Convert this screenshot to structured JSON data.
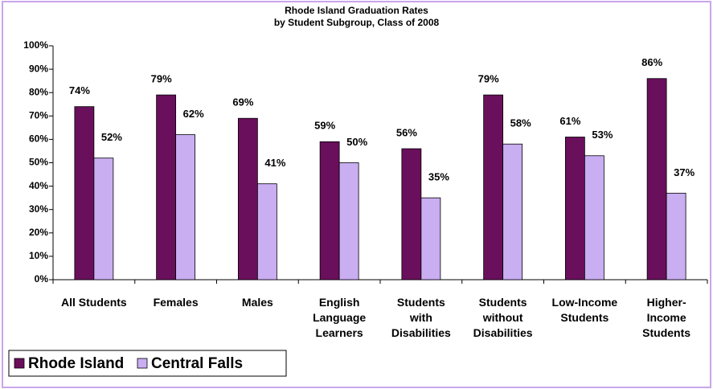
{
  "chart_data": {
    "type": "bar",
    "title": "Rhode Island Graduation Rates\nby Student Subgroup, Class of 2008",
    "categories": [
      "All Students",
      "Females",
      "Males",
      "English\nLanguage\nLearners",
      "Students\nwith\nDisabilities",
      "Students\nwithout\nDisabilities",
      "Low-Income\nStudents",
      "Higher-\nIncome\nStudents"
    ],
    "series": [
      {
        "name": "Rhode Island",
        "color": "#6a0f5c",
        "values": [
          74,
          79,
          69,
          59,
          56,
          79,
          61,
          86
        ],
        "value_labels": [
          "74%",
          "79%",
          "69%",
          "59%",
          "56%",
          "79%",
          "61%",
          "86%"
        ]
      },
      {
        "name": "Central Falls",
        "color": "#c9aef2",
        "values": [
          52,
          62,
          41,
          50,
          35,
          58,
          53,
          37
        ],
        "value_labels": [
          "52%",
          "62%",
          "41%",
          "50%",
          "35%",
          "58%",
          "53%",
          "37%"
        ]
      }
    ],
    "ylim": [
      0,
      100
    ],
    "yticks": [
      {
        "value": 0,
        "label": "0%"
      },
      {
        "value": 10,
        "label": "10%"
      },
      {
        "value": 20,
        "label": "20%"
      },
      {
        "value": 30,
        "label": "30%"
      },
      {
        "value": 40,
        "label": "40%"
      },
      {
        "value": 50,
        "label": "50%"
      },
      {
        "value": 60,
        "label": "60%"
      },
      {
        "value": 70,
        "label": "70%"
      },
      {
        "value": 80,
        "label": "80%"
      },
      {
        "value": 90,
        "label": "90%"
      },
      {
        "value": 100,
        "label": "100%"
      }
    ],
    "grid": false,
    "legend": "bottom-left"
  }
}
